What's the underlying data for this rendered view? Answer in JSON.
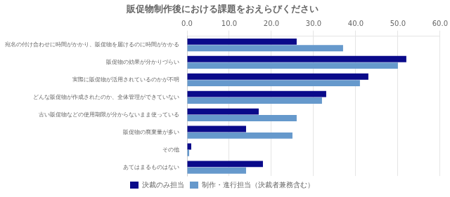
{
  "chart_data": {
    "type": "bar",
    "orientation": "horizontal",
    "title": "販促物制作後における課題をおえらびください",
    "categories": [
      "宛名の付け合わせに時間がかかり、販促物を届けるのに時間がかかる",
      "販促物の効果が分かりづらい",
      "実際に販促物が活用されているのかが不明",
      "どんな販促物が作成されたのか、全体管理ができていない",
      "古い販促物などの使用期限が分からないまま使っている",
      "販促物の廃棄量が多い",
      "その他",
      "あてはまるものはない"
    ],
    "series": [
      {
        "name": "決裁のみ担当",
        "color": "#0a0a8a",
        "values": [
          26,
          52,
          43,
          33,
          17,
          14,
          1,
          18
        ]
      },
      {
        "name": "制作・進行担当（決裁者兼務含む）",
        "color": "#6699cc",
        "values": [
          37,
          50,
          41,
          32,
          26,
          25,
          0.5,
          14
        ]
      }
    ],
    "xlim": [
      0,
      60
    ],
    "xticks": [
      {
        "value": 0,
        "label": "0.0"
      },
      {
        "value": 10,
        "label": "10.0"
      },
      {
        "value": 20,
        "label": "20.0"
      },
      {
        "value": 30,
        "label": "30.0"
      },
      {
        "value": 40,
        "label": "40.0"
      },
      {
        "value": 50,
        "label": "50.0"
      },
      {
        "value": 60,
        "label": "60.0"
      }
    ],
    "grid": true,
    "legend": "bottom"
  }
}
